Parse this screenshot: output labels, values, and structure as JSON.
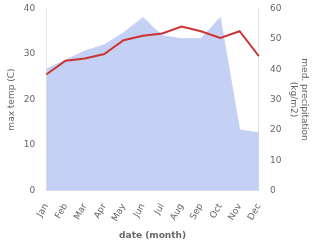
{
  "chart_data": {
    "type": "line",
    "categories": [
      "Jan",
      "Feb",
      "Mar",
      "Apr",
      "May",
      "Jun",
      "Jul",
      "Aug",
      "Sep",
      "Oct",
      "Nov",
      "Dec"
    ],
    "xlabel": "date (month)",
    "ylabel": "max temp (C)",
    "y2label": "med. precipitation\n(kg/m2)",
    "ylim": [
      0,
      40
    ],
    "yticks": [
      0,
      10,
      20,
      30,
      40
    ],
    "y2lim": [
      0,
      60
    ],
    "y2ticks": [
      0,
      10,
      20,
      30,
      40,
      50,
      60
    ],
    "grid": false,
    "series": [
      {
        "type": "line",
        "color": "#cc3333",
        "values": [
          25.5,
          28.5,
          29,
          30,
          33,
          34,
          34.5,
          36,
          35,
          33.5,
          35,
          29.5
        ]
      },
      {
        "type": "area",
        "color": "#c5d0f5",
        "axis": "y2",
        "values": [
          40,
          43,
          46,
          48,
          52,
          57,
          51,
          50,
          50,
          57,
          20,
          19
        ]
      }
    ]
  }
}
